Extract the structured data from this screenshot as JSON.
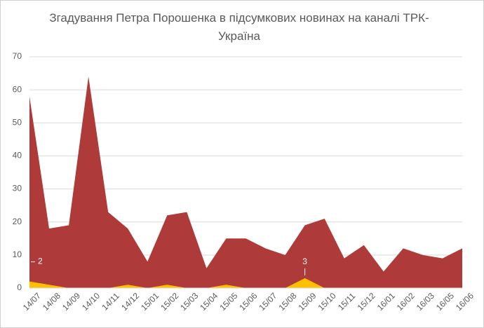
{
  "chart_data": {
    "type": "area",
    "title": "Згадування  Петра Порошенка в підсумкових новинах на каналі ТРК-Україна",
    "categories": [
      "14/07",
      "14/08",
      "14/09",
      "14/10",
      "14/11",
      "14/12",
      "15/01",
      "15/02",
      "15/03",
      "15/04",
      "15/05",
      "15/06",
      "15/07",
      "15/08",
      "15/09",
      "15/10",
      "15/11",
      "15/12",
      "16/01",
      "16/02",
      "16/03",
      "16/05",
      "16/06"
    ],
    "series": [
      {
        "color": "#ae3a3a",
        "values": [
          58,
          18,
          19,
          64,
          23,
          18,
          8,
          22,
          23,
          6,
          15,
          15,
          12,
          10,
          19,
          21,
          9,
          13,
          5,
          12,
          10,
          9,
          12
        ]
      },
      {
        "color": "#ffc000",
        "values": [
          2,
          1,
          0,
          0,
          0,
          1,
          0,
          1,
          0,
          0,
          1,
          0,
          0,
          0,
          3,
          0,
          0,
          0,
          0,
          0,
          0,
          0,
          0
        ],
        "value_labels": [
          2,
          null,
          null,
          null,
          null,
          null,
          null,
          null,
          null,
          null,
          null,
          null,
          null,
          null,
          3,
          null,
          null,
          null,
          null,
          null,
          null,
          null,
          null
        ]
      }
    ],
    "ylim": [
      0,
      70
    ],
    "yticks": [
      0,
      10,
      20,
      30,
      40,
      50,
      60,
      70
    ],
    "grid": true
  }
}
